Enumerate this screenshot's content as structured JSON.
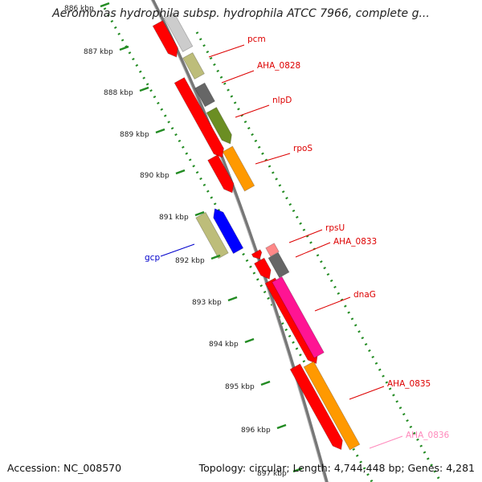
{
  "title": "Aeromonas hydrophila subsp. hydrophila ATCC 7966, complete g...",
  "footer": {
    "accession": "Accession: NC_008570",
    "summary": "Topology: circular; Length: 4,744,448 bp; Genes: 4,281"
  },
  "scale_labels": [
    "886 kbp",
    "887 kbp",
    "888 kbp",
    "889 kbp",
    "890 kbp",
    "891 kbp",
    "892 kbp",
    "893 kbp",
    "894 kbp",
    "895 kbp",
    "896 kbp",
    "897 kbp"
  ],
  "gene_labels": [
    {
      "text": "pcm",
      "color": "#dd0000"
    },
    {
      "text": "AHA_0828",
      "color": "#dd0000"
    },
    {
      "text": "nlpD",
      "color": "#dd0000"
    },
    {
      "text": "rpoS",
      "color": "#dd0000"
    },
    {
      "text": "rpsU",
      "color": "#dd0000"
    },
    {
      "text": "AHA_0833",
      "color": "#dd0000"
    },
    {
      "text": "dnaG",
      "color": "#dd0000"
    },
    {
      "text": "AHA_0835",
      "color": "#dd0000"
    },
    {
      "text": "AHA_0836",
      "color": "#ff88bb"
    },
    {
      "text": "gcp",
      "color": "#0000cc"
    }
  ],
  "colors": {
    "cds": "#ff0000",
    "backbone": "#777777",
    "scale_ticks": "#228b22",
    "gray_feature": "#cccccc",
    "dark_gray_feature": "#666666",
    "khaki_feature": "#bdbd7a",
    "olive_feature": "#6b8e23",
    "orange_feature": "#ff9900",
    "pink_feature": "#ff1493",
    "light_pink_feature": "#ff8888",
    "blue_feature": "#0000ff"
  }
}
